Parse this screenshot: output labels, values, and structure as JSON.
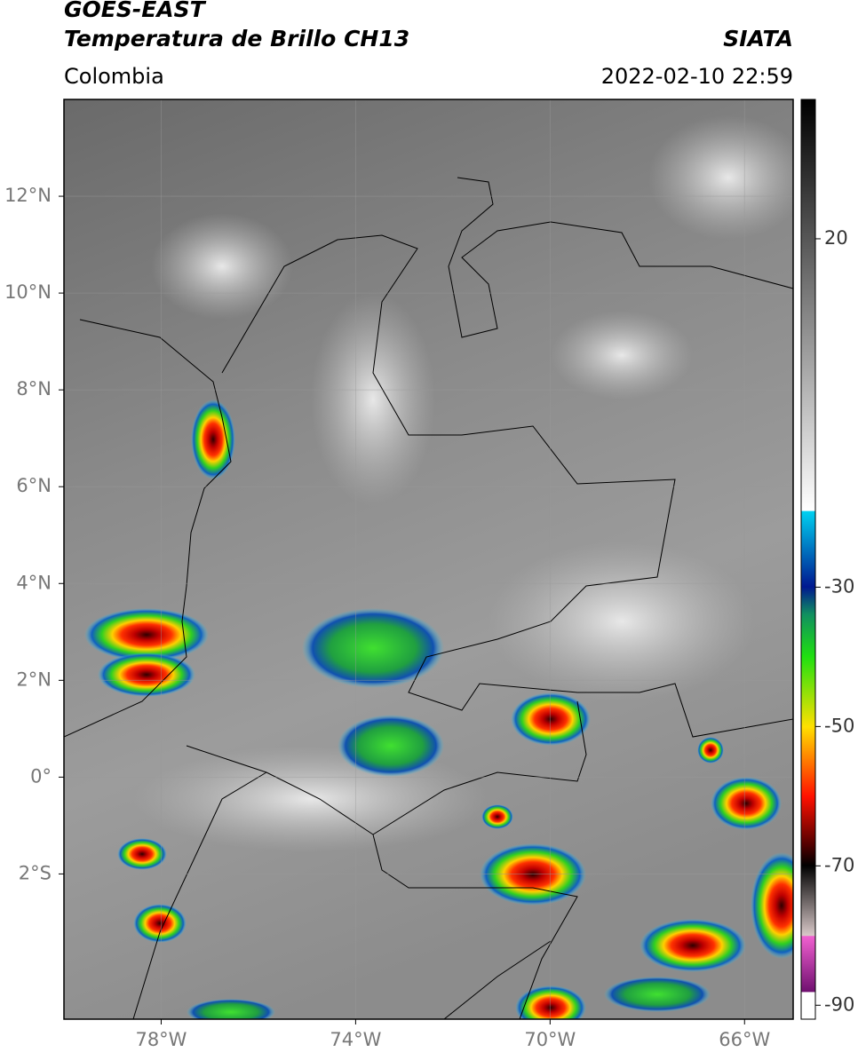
{
  "header": {
    "title": "GOES-EAST",
    "subtitle": "Temperatura de Brillo CH13",
    "region": "Colombia",
    "source": "SIATA",
    "datetime": "2022-02-10 22:59"
  },
  "map": {
    "xlim": [
      -80,
      -65
    ],
    "ylim": [
      -5,
      14
    ],
    "xticks": [
      {
        "value": -78,
        "label": "78°W"
      },
      {
        "value": -74,
        "label": "74°W"
      },
      {
        "value": -70,
        "label": "70°W"
      },
      {
        "value": -66,
        "label": "66°W"
      }
    ],
    "yticks": [
      {
        "value": 12,
        "label": "12°N"
      },
      {
        "value": 10,
        "label": "10°N"
      },
      {
        "value": 8,
        "label": "8°N"
      },
      {
        "value": 6,
        "label": "6°N"
      },
      {
        "value": 4,
        "label": "4°N"
      },
      {
        "value": 2,
        "label": "2°N"
      },
      {
        "value": 0,
        "label": "0°"
      },
      {
        "value": -2,
        "label": "2°S"
      }
    ],
    "grid": true
  },
  "colorbar": {
    "clim": [
      -92,
      40
    ],
    "ticks": [
      20,
      -30,
      -50,
      -70,
      -90
    ]
  }
}
